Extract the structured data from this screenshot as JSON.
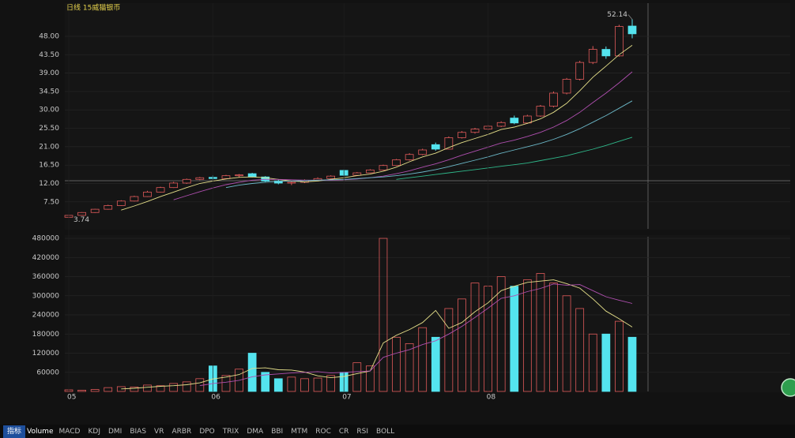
{
  "chart_data": [
    {
      "type": "candlestick",
      "title": "日线 15威猫银币",
      "open": [
        3.74,
        4.2,
        4.9,
        5.7,
        6.6,
        7.7,
        8.8,
        9.9,
        11.0,
        12.1,
        13.0,
        13.5,
        13.2,
        13.9,
        14.4,
        13.6,
        12.6,
        12.1,
        12.3,
        12.8,
        13.2,
        15.2,
        14.0,
        14.6,
        15.3,
        16.4,
        17.8,
        19.1,
        21.5,
        20.4,
        23.2,
        24.5,
        25.3,
        26.0,
        28.0,
        26.8,
        28.5,
        30.9,
        34.1,
        37.5,
        41.6,
        44.8,
        43.2,
        50.5
      ],
      "high": [
        4.3,
        5.0,
        5.8,
        6.8,
        7.9,
        9.0,
        10.2,
        11.2,
        12.4,
        13.2,
        13.6,
        14.0,
        14.1,
        14.3,
        14.6,
        13.8,
        12.9,
        12.5,
        13.0,
        13.5,
        14.0,
        15.4,
        14.8,
        15.5,
        16.6,
        18.0,
        19.4,
        20.5,
        22.0,
        23.5,
        24.8,
        25.6,
        26.3,
        27.2,
        28.6,
        28.8,
        31.2,
        34.5,
        37.8,
        42.0,
        45.6,
        45.5,
        50.8,
        52.14
      ],
      "low": [
        3.74,
        4.1,
        4.8,
        5.6,
        6.5,
        7.6,
        8.7,
        9.8,
        10.9,
        11.9,
        12.8,
        12.9,
        13.1,
        13.5,
        13.5,
        12.4,
        11.8,
        11.6,
        12.1,
        12.6,
        13.0,
        13.8,
        13.9,
        14.5,
        15.2,
        16.3,
        17.6,
        18.9,
        20.0,
        20.3,
        23.0,
        24.2,
        25.0,
        25.8,
        26.5,
        26.6,
        28.3,
        30.6,
        33.8,
        37.2,
        41.2,
        42.5,
        43.0,
        47.5
      ],
      "close": [
        4.2,
        4.9,
        5.7,
        6.6,
        7.7,
        8.8,
        9.9,
        11.0,
        12.1,
        13.0,
        13.4,
        13.2,
        13.9,
        14.1,
        13.6,
        12.6,
        12.1,
        12.3,
        12.8,
        13.2,
        13.8,
        14.0,
        14.6,
        15.3,
        16.4,
        17.8,
        19.1,
        20.2,
        20.4,
        23.2,
        24.5,
        25.3,
        26.0,
        26.9,
        26.8,
        28.5,
        30.9,
        34.1,
        37.5,
        41.6,
        44.8,
        43.2,
        50.4,
        48.6
      ],
      "up_color": "#e05a5a",
      "down_color": "#54e4ef",
      "series": [
        {
          "color": "#e6e08a",
          "values": [
            null,
            null,
            null,
            null,
            5.5,
            6.5,
            7.6,
            8.8,
            9.9,
            11.0,
            12.0,
            12.6,
            13.1,
            13.5,
            13.6,
            13.4,
            13.0,
            12.6,
            12.4,
            12.6,
            13.0,
            13.4,
            13.9,
            14.3,
            15.0,
            16.0,
            17.3,
            18.5,
            19.4,
            20.8,
            22.0,
            23.0,
            24.0,
            25.2,
            25.8,
            26.7,
            27.8,
            29.4,
            31.6,
            34.7,
            38.0,
            40.7,
            43.5,
            45.8
          ]
        },
        {
          "color": "#b04fb0",
          "values": [
            null,
            null,
            null,
            null,
            null,
            null,
            null,
            null,
            8.0,
            9.0,
            10.0,
            10.9,
            11.7,
            12.3,
            12.8,
            13.0,
            13.0,
            12.9,
            12.8,
            12.8,
            12.8,
            12.9,
            13.1,
            13.4,
            13.8,
            14.4,
            15.1,
            16.0,
            16.8,
            17.8,
            18.9,
            19.9,
            20.9,
            21.9,
            22.6,
            23.5,
            24.5,
            25.8,
            27.4,
            29.4,
            31.8,
            34.1,
            36.6,
            39.3
          ]
        },
        {
          "color": "#6cb9c9",
          "values": [
            null,
            null,
            null,
            null,
            null,
            null,
            null,
            null,
            null,
            null,
            null,
            null,
            11.0,
            11.6,
            12.0,
            12.3,
            12.5,
            12.6,
            12.7,
            12.8,
            12.9,
            13.0,
            13.2,
            13.4,
            13.6,
            13.9,
            14.3,
            14.8,
            15.4,
            16.1,
            16.9,
            17.7,
            18.5,
            19.4,
            20.2,
            21.0,
            21.8,
            22.8,
            24.0,
            25.4,
            27.0,
            28.6,
            30.4,
            32.2
          ]
        },
        {
          "color": "#2fb88a",
          "values": [
            null,
            null,
            null,
            null,
            null,
            null,
            null,
            null,
            null,
            null,
            null,
            null,
            null,
            null,
            null,
            null,
            null,
            null,
            null,
            null,
            null,
            null,
            null,
            null,
            null,
            13.0,
            13.4,
            13.8,
            14.2,
            14.6,
            15.0,
            15.4,
            15.8,
            16.2,
            16.6,
            17.0,
            17.6,
            18.2,
            18.8,
            19.6,
            20.4,
            21.3,
            22.3,
            23.3
          ]
        }
      ],
      "annotations": [
        52.14,
        3.74
      ],
      "ylim": [
        0.9,
        56.1
      ],
      "yticks": [
        {
          "value": 7.5,
          "label": "7.50"
        },
        {
          "value": 12,
          "label": "12.00"
        },
        {
          "value": 16.5,
          "label": "16.50"
        },
        {
          "value": 21,
          "label": "21.00"
        },
        {
          "value": 25.5,
          "label": "25.50"
        },
        {
          "value": 30,
          "label": "30.00"
        },
        {
          "value": 34.5,
          "label": "34.50"
        },
        {
          "value": 39,
          "label": "39.00"
        },
        {
          "value": 43.5,
          "label": "43.50"
        },
        {
          "value": 48,
          "label": "48.00"
        }
      ],
      "grid": true
    },
    {
      "type": "bar",
      "categories": [
        "05",
        null,
        null,
        null,
        null,
        null,
        null,
        null,
        null,
        null,
        null,
        "06",
        null,
        null,
        null,
        null,
        null,
        null,
        null,
        null,
        null,
        "07",
        null,
        null,
        null,
        null,
        null,
        null,
        null,
        null,
        null,
        null,
        "08",
        null,
        null,
        null,
        null,
        null,
        null,
        null,
        null,
        null,
        null,
        null
      ],
      "values": [
        5000,
        4000,
        6000,
        12000,
        15000,
        14000,
        20000,
        18000,
        25000,
        30000,
        40000,
        80000,
        50000,
        70000,
        120000,
        60000,
        40000,
        45000,
        40000,
        42000,
        50000,
        60000,
        90000,
        80000,
        480000,
        170000,
        150000,
        200000,
        170000,
        260000,
        290000,
        340000,
        330000,
        360000,
        330000,
        350000,
        370000,
        340000,
        300000,
        260000,
        180000,
        180000,
        220000,
        170000
      ],
      "series": [
        {
          "color": "#e6e08a",
          "values": [
            null,
            null,
            null,
            null,
            8000,
            10000,
            13000,
            16000,
            18000,
            21000,
            27000,
            39000,
            45000,
            53000,
            72000,
            74000,
            68000,
            67000,
            61000,
            49000,
            43000,
            47000,
            56000,
            64000,
            152000,
            176000,
            194000,
            216000,
            254000,
            198000,
            216000,
            250000,
            278000,
            316000,
            330000,
            342000,
            346000,
            350000,
            338000,
            324000,
            290000,
            252000,
            228000,
            202000
          ]
        },
        {
          "color": "#b04fb0",
          "values": [
            null,
            null,
            null,
            null,
            null,
            null,
            null,
            null,
            null,
            null,
            18000,
            25000,
            29000,
            35000,
            46000,
            52000,
            55000,
            58000,
            60000,
            62000,
            58000,
            60000,
            62000,
            64000,
            107000,
            120000,
            131000,
            147000,
            159000,
            180000,
            204000,
            232000,
            261000,
            292000,
            300000,
            313000,
            323000,
            337000,
            333000,
            335000,
            316000,
            297000,
            286000,
            276000
          ]
        }
      ],
      "ylim": [
        0,
        490000
      ],
      "yticks": [
        60000,
        120000,
        180000,
        240000,
        300000,
        360000,
        420000,
        480000
      ],
      "grid": true
    }
  ],
  "tabs": [
    "指标",
    "Volume",
    "MACD",
    "KDJ",
    "DMI",
    "BIAS",
    "VR",
    "ARBR",
    "DPO",
    "TRIX",
    "DMA",
    "BBI",
    "MTM",
    "ROC",
    "CR",
    "RSI",
    "BOLL"
  ]
}
